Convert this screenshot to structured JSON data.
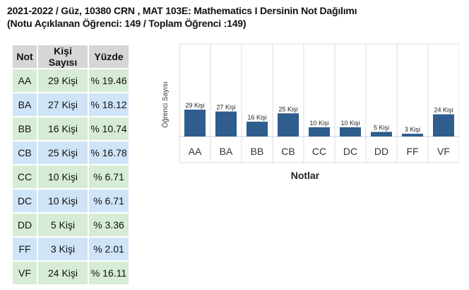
{
  "header": {
    "line1": "2021-2022 / Güz, 10380 CRN , MAT 103E: Mathematics I Dersinin Not Dağılımı",
    "line2": "(Notu Açıklanan Öğrenci: 149 / Toplam Öğrenci :149)"
  },
  "table": {
    "headers": [
      "Not",
      "Kişi Sayısı",
      "Yüzde"
    ],
    "rows": [
      {
        "grade": "AA",
        "count": "29 Kişi",
        "percent": "% 19.46"
      },
      {
        "grade": "BA",
        "count": "27 Kişi",
        "percent": "% 18.12"
      },
      {
        "grade": "BB",
        "count": "16 Kişi",
        "percent": "% 10.74"
      },
      {
        "grade": "CB",
        "count": "25 Kişi",
        "percent": "% 16.78"
      },
      {
        "grade": "CC",
        "count": "10 Kişi",
        "percent": "% 6.71"
      },
      {
        "grade": "DC",
        "count": "10 Kişi",
        "percent": "% 6.71"
      },
      {
        "grade": "DD",
        "count": "5 Kişi",
        "percent": "% 3.36"
      },
      {
        "grade": "FF",
        "count": "3 Kişi",
        "percent": "% 2.01"
      },
      {
        "grade": "VF",
        "count": "24 Kişi",
        "percent": "% 16.11"
      }
    ]
  },
  "chart_data": {
    "type": "bar",
    "categories": [
      "AA",
      "BA",
      "BB",
      "CB",
      "CC",
      "DC",
      "DD",
      "FF",
      "VF"
    ],
    "values": [
      29,
      27,
      16,
      25,
      10,
      10,
      5,
      3,
      24
    ],
    "data_labels": [
      "29 Kişi",
      "27 Kişi",
      "16 Kişi",
      "25 Kişi",
      "10 Kişi",
      "10 Kişi",
      "5 Kişi",
      "3 Kişi",
      "24 Kişi"
    ],
    "xlabel": "Notlar",
    "ylabel": "Öğrenci Sayısı",
    "ylim": [
      0,
      100
    ],
    "bar_color": "#2e5d8e",
    "grid": true
  },
  "colors": {
    "header_bg": "#d6d6d6",
    "row_even": "#d7ecd4",
    "row_odd": "#cfe4f7",
    "bar": "#2e5d8e"
  }
}
